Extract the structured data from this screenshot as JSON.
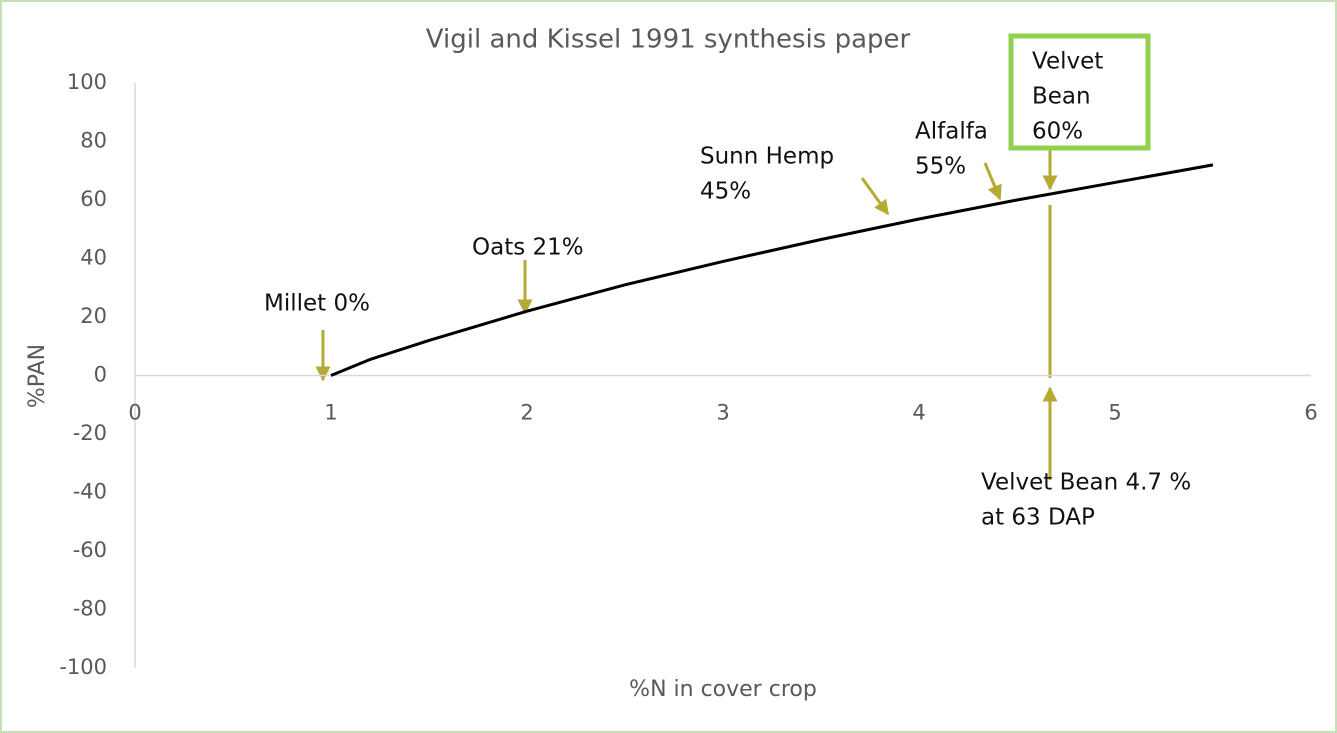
{
  "chart_data": {
    "type": "line",
    "title": "Vigil and Kissel 1991 synthesis paper",
    "x_label": "%N in cover crop",
    "y_label": "%PAN",
    "x": [
      1,
      1.2,
      1.5,
      2,
      2.5,
      3,
      3.5,
      4,
      4.5,
      5,
      5.5
    ],
    "values": [
      0,
      5.5,
      12,
      22,
      31,
      39,
      46.5,
      53.5,
      60,
      66,
      72
    ],
    "color": "#000000",
    "xlim": [
      0,
      6
    ],
    "xticks": [
      0,
      1,
      2,
      3,
      4,
      5,
      6
    ],
    "ylim": [
      -100,
      100
    ],
    "yticks": [
      -100,
      -80,
      -60,
      -40,
      -20,
      0,
      20,
      40,
      60,
      80,
      100
    ],
    "annotations": [
      {
        "lines": [
          "Millet 0%"
        ]
      },
      {
        "lines": [
          "Oats 21%"
        ]
      },
      {
        "lines": [
          "Sunn Hemp",
          "45%"
        ]
      },
      {
        "lines": [
          "Alfalfa",
          "55%"
        ]
      },
      {
        "lines": [
          "Velvet",
          "Bean",
          "60%"
        ]
      },
      {
        "lines": [
          "Velvet Bean 4.7 %",
          "at 63 DAP"
        ]
      }
    ]
  }
}
